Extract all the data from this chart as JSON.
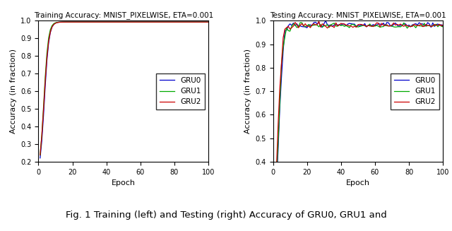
{
  "train_title": "Training Accuracy: MNIST_PIXELWISE, ETA=0.001",
  "test_title": "Testing Accuracy: MNIST_PIXELWISE, ETA=0.001",
  "xlabel": "Epoch",
  "ylabel": "Accuracy (in fraction)",
  "legend_labels": [
    "GRU0",
    "GRU1",
    "GRU2"
  ],
  "colors": [
    "#0000cc",
    "#00aa00",
    "#cc0000"
  ],
  "train_ylim": [
    0.2,
    1.0
  ],
  "test_ylim": [
    0.4,
    1.0
  ],
  "xlim": [
    0,
    100
  ],
  "caption": "Fig. 1 Training (left) and Testing (right) Accuracy of GRU0, GRU1 and",
  "n_epochs": 100,
  "background_color": "#ffffff",
  "train_yticks": [
    0.2,
    0.3,
    0.4,
    0.5,
    0.6,
    0.7,
    0.8,
    0.9,
    1.0
  ],
  "test_yticks": [
    0.4,
    0.5,
    0.6,
    0.7,
    0.8,
    0.9,
    1.0
  ],
  "xticks": [
    0,
    20,
    40,
    60,
    80,
    100
  ]
}
